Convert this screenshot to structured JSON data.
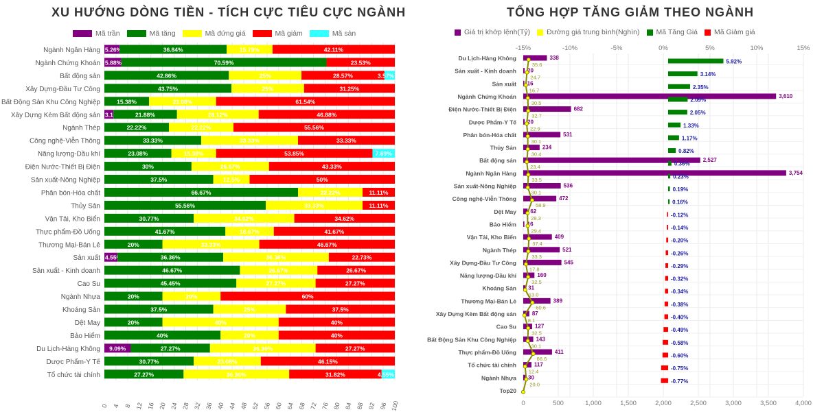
{
  "chart_data": [
    {
      "type": "bar",
      "stacked": true,
      "orientation": "horizontal",
      "title": "XU HƯỚNG DÒNG TIỀN - TÍCH CỰC TIÊU CỰC NGÀNH",
      "xlim": [
        0,
        100
      ],
      "xticks": [
        0,
        4,
        8,
        12,
        16,
        20,
        24,
        28,
        32,
        36,
        40,
        44,
        48,
        52,
        56,
        60,
        64,
        68,
        72,
        76,
        80,
        84,
        88,
        92,
        96,
        100
      ],
      "grid": true,
      "legend_position": "top",
      "categories": [
        "Ngành Ngân Hàng",
        "Ngành Chứng Khoán",
        "Bất động sản",
        "Xây Dựng-Đầu Tư Công",
        "Bất Động Sản Khu Công Nghiệp",
        "Xây Dựng Kèm Bất động sản",
        "Ngành Thép",
        "Công nghệ-Viễn Thông",
        "Năng lượng-Dầu khí",
        "Điện Nước-Thiết Bị Điện",
        "Sản xuất-Nông Nghiệp",
        "Phân bón-Hóa chất",
        "Thủy Sản",
        "Vận Tải, Kho Biển",
        "Thực phẩm-Đồ Uống",
        "Thương Mại-Bán Lẻ",
        "Sản xuất",
        "Sản xuất - Kinh doanh",
        "Cao Su",
        "Ngành Nhựa",
        "Khoáng Sản",
        "Dệt May",
        "Bảo Hiểm",
        "Du Lịch-Hàng Không",
        "Dược Phẩm-Y Tế",
        "Tổ chức tài chính"
      ],
      "series": [
        {
          "name": "Mã trần",
          "color": "#800080",
          "values": [
            5.26,
            5.88,
            0,
            0,
            0,
            3.12,
            0,
            0,
            0,
            0,
            0,
            0,
            0,
            0,
            0,
            0,
            4.55,
            0,
            0,
            0,
            0,
            0,
            0,
            9.09,
            0,
            0
          ]
        },
        {
          "name": "Mã tăng",
          "color": "#008000",
          "values": [
            36.84,
            70.59,
            42.86,
            43.75,
            15.38,
            21.88,
            22.22,
            33.33,
            23.08,
            30,
            37.5,
            66.67,
            55.56,
            30.77,
            41.67,
            20,
            36.36,
            46.67,
            45.45,
            20,
            37.5,
            20,
            40,
            27.27,
            30.77,
            27.27
          ]
        },
        {
          "name": "Mã đứng giá",
          "color": "#ffff00",
          "values": [
            15.79,
            0,
            25,
            25,
            23.08,
            28.12,
            22.22,
            33.33,
            15.38,
            26.67,
            12.5,
            22.22,
            33.33,
            34.62,
            16.67,
            33.33,
            36.36,
            26.67,
            27.27,
            20,
            25,
            40,
            20,
            36.36,
            23.08,
            36.36
          ]
        },
        {
          "name": "Mã giảm",
          "color": "#ff0000",
          "values": [
            42.11,
            23.53,
            28.57,
            31.25,
            61.54,
            46.88,
            55.56,
            33.33,
            53.85,
            43.33,
            50,
            11.11,
            11.11,
            34.62,
            41.67,
            46.67,
            22.73,
            26.67,
            27.27,
            60,
            37.5,
            40,
            40,
            27.27,
            46.15,
            31.82
          ]
        },
        {
          "name": "Mã sàn",
          "color": "#33ffff",
          "values": [
            0,
            0,
            3.57,
            0,
            0,
            0,
            0,
            0,
            7.69,
            0,
            0,
            0,
            0,
            0,
            0,
            0,
            0,
            0,
            0,
            0,
            0,
            0,
            0,
            0,
            0,
            4.55
          ]
        }
      ]
    },
    {
      "type": "bar",
      "orientation": "horizontal",
      "title": "TỔNG HỢP TĂNG GIẢM THEO NGÀNH",
      "top_axis": {
        "xlim": [
          -15,
          15
        ],
        "ticks": [
          "-15%",
          "-10%",
          "-5%",
          "0%",
          "5%",
          "10%",
          "15%"
        ]
      },
      "bottom_axis": {
        "xlim": [
          0,
          4000
        ],
        "ticks": [
          "0",
          "500",
          "1,000",
          "1,500",
          "2,000",
          "2,500",
          "3,000",
          "3,500",
          "4,000"
        ]
      },
      "grid": true,
      "legend_position": "top",
      "categories": [
        "Du Lịch-Hàng Không",
        "Sản xuất - Kinh doanh",
        "Sản xuất",
        "Ngành Chứng Khoán",
        "Điện Nước-Thiết Bị Điện",
        "Dược Phẩm-Y Tế",
        "Phân bón-Hóa chất",
        "Thủy Sản",
        "Bất động sản",
        "Ngành Ngân Hàng",
        "Sản xuất-Nông Nghiệp",
        "Công nghệ-Viễn Thông",
        "Dệt May",
        "Bảo Hiểm",
        "Vận Tải, Kho Biển",
        "Ngành Thép",
        "Xây Dựng-Đầu Tư Công",
        "Năng lượng-Dầu khí",
        "Khoáng Sản",
        "Thương Mại-Bán Lẻ",
        "Xây Dựng Kèm Bất động sản",
        "Cao Su",
        "Bất Động Sản Khu Công Nghiệp",
        "Thực phẩm-Đồ Uống",
        "Tổ chức tài chính",
        "Ngành Nhựa",
        "Top20"
      ],
      "series": [
        {
          "name": "Giá trị khớp lệnh(Tỷ)",
          "color": "#800080",
          "values": [
            338,
            20,
            16,
            3610,
            682,
            20,
            531,
            234,
            2527,
            3754,
            536,
            472,
            62,
            16,
            409,
            521,
            545,
            160,
            31,
            389,
            87,
            127,
            143,
            411,
            117,
            30,
            null
          ],
          "labels": [
            "338",
            "20",
            "16",
            "3,610",
            "682",
            "20",
            "531",
            "234",
            "2,527",
            "3,754",
            "536",
            "472",
            "62",
            "16",
            "409",
            "521",
            "545",
            "160",
            "31",
            "389",
            "87",
            "127",
            "143",
            "411",
            "117",
            "30",
            ""
          ]
        },
        {
          "name": "Đường giá trung bình(Nghìn)",
          "color": "#ffff00",
          "type": "line",
          "values": [
            35.6,
            24.7,
            16.7,
            30.5,
            32.7,
            22.9,
            30.1,
            30.4,
            23.4,
            33.5,
            30.1,
            58.9,
            28.3,
            29.4,
            37.4,
            33.3,
            17.8,
            32.5,
            13.0,
            60.6,
            8.1,
            32.5,
            30.1,
            66.6,
            12.4,
            20.0,
            0
          ]
        },
        {
          "name": "Mã Tăng Giá",
          "color": "#008000",
          "values": [
            5.92,
            3.14,
            2.35,
            2.09,
            2.05,
            1.33,
            1.17,
            0.82,
            0.36,
            0.23,
            0.19,
            0.16,
            null,
            null,
            null,
            null,
            null,
            null,
            null,
            null,
            null,
            null,
            null,
            null,
            null,
            null,
            null
          ]
        },
        {
          "name": "Mã Giảm giá",
          "color": "#ff0000",
          "values": [
            null,
            null,
            null,
            null,
            null,
            null,
            null,
            null,
            null,
            null,
            null,
            null,
            -0.12,
            -0.14,
            -0.2,
            -0.26,
            -0.29,
            -0.32,
            -0.34,
            -0.38,
            -0.4,
            -0.49,
            -0.58,
            -0.6,
            -0.75,
            -0.77,
            null
          ]
        }
      ]
    }
  ]
}
